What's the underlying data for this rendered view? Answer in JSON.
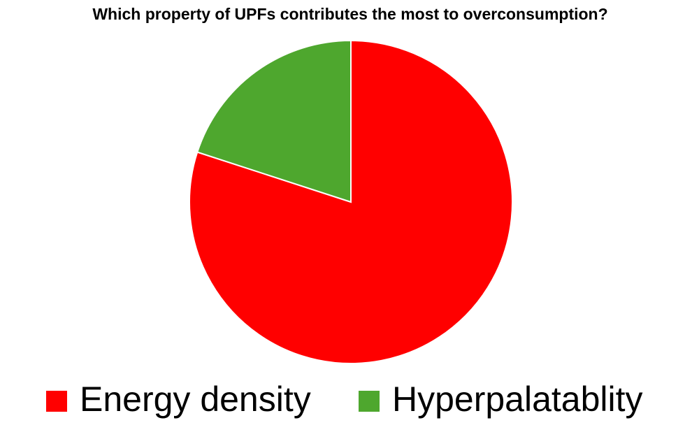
{
  "chart_data": {
    "type": "pie",
    "title": "Which property of UPFs contributes the most to overconsumption?",
    "categories": [
      "Energy density",
      "Hyperpalatablity"
    ],
    "values": [
      80,
      20
    ],
    "colors": [
      "#ff0000",
      "#4ea72e"
    ],
    "legend": "bottom"
  }
}
